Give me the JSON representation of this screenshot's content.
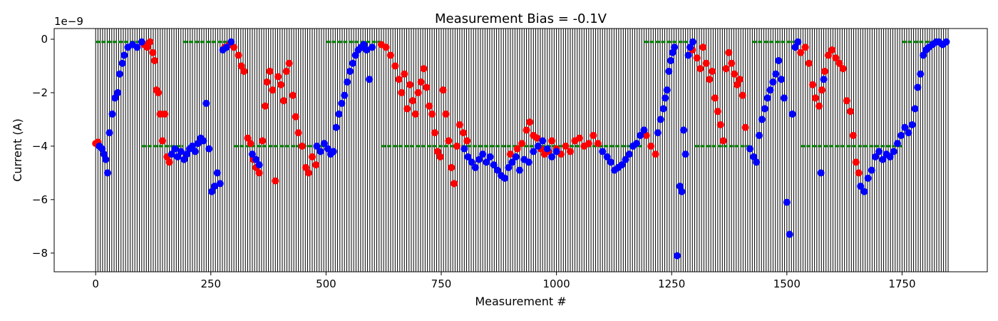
{
  "chart_data": {
    "type": "scatter",
    "title": "Measurement Bias = -0.1V",
    "xlabel": "Measurement #",
    "ylabel": "Current (A)",
    "y_offset_label": "1e−9",
    "xlim": [
      -90,
      1935
    ],
    "ylim": [
      -8.7,
      0.4
    ],
    "x_ticks": [
      0,
      250,
      500,
      750,
      1000,
      1250,
      1500,
      1750
    ],
    "x_tick_labels": [
      "0",
      "250",
      "500",
      "750",
      "1000",
      "1250",
      "1500",
      "1750"
    ],
    "y_ticks": [
      0,
      -2,
      -4,
      -6,
      -8
    ],
    "y_tick_labels": [
      "0",
      "−2",
      "−4",
      "−6",
      "−8"
    ],
    "grid": false,
    "vertical_lines": {
      "color": "#000000",
      "x_start": 0,
      "x_end": 1850,
      "spacing": 5
    },
    "colors": {
      "pulse": "#008000",
      "red": "#ff0000",
      "blue": "#0000ff"
    },
    "series": [
      {
        "color": "red",
        "points": [
          [
            0,
            -3.9
          ],
          [
            5,
            -3.85
          ],
          [
            105,
            -0.2
          ],
          [
            112,
            -0.3
          ],
          [
            118,
            -0.1
          ],
          [
            124,
            -0.5
          ],
          [
            128,
            -0.8
          ],
          [
            132,
            -1.9
          ],
          [
            136,
            -2.0
          ],
          [
            140,
            -2.8
          ],
          [
            145,
            -3.8
          ],
          [
            150,
            -2.8
          ],
          [
            155,
            -4.4
          ],
          [
            160,
            -4.6
          ],
          [
            280,
            -0.3
          ],
          [
            290,
            -0.2
          ],
          [
            300,
            -0.3
          ],
          [
            310,
            -0.6
          ],
          [
            316,
            -1.0
          ],
          [
            322,
            -1.2
          ],
          [
            330,
            -3.7
          ],
          [
            336,
            -3.9
          ],
          [
            342,
            -4.5
          ],
          [
            348,
            -4.8
          ],
          [
            355,
            -5.0
          ],
          [
            362,
            -3.8
          ],
          [
            368,
            -2.5
          ],
          [
            372,
            -1.6
          ],
          [
            378,
            -1.2
          ],
          [
            384,
            -1.9
          ],
          [
            390,
            -5.3
          ],
          [
            396,
            -1.4
          ],
          [
            402,
            -1.7
          ],
          [
            408,
            -2.3
          ],
          [
            414,
            -1.2
          ],
          [
            420,
            -0.9
          ],
          [
            428,
            -2.1
          ],
          [
            434,
            -2.9
          ],
          [
            440,
            -3.5
          ],
          [
            448,
            -4.0
          ],
          [
            456,
            -4.8
          ],
          [
            462,
            -5.0
          ],
          [
            470,
            -4.4
          ],
          [
            478,
            -4.7
          ],
          [
            620,
            -0.2
          ],
          [
            630,
            -0.3
          ],
          [
            640,
            -0.6
          ],
          [
            650,
            -1.0
          ],
          [
            658,
            -1.5
          ],
          [
            664,
            -2.0
          ],
          [
            670,
            -1.3
          ],
          [
            676,
            -2.6
          ],
          [
            682,
            -1.7
          ],
          [
            688,
            -2.3
          ],
          [
            694,
            -2.8
          ],
          [
            700,
            -2.0
          ],
          [
            706,
            -1.6
          ],
          [
            712,
            -1.1
          ],
          [
            718,
            -1.8
          ],
          [
            724,
            -2.5
          ],
          [
            730,
            -2.8
          ],
          [
            736,
            -3.5
          ],
          [
            742,
            -4.2
          ],
          [
            748,
            -4.4
          ],
          [
            754,
            -1.9
          ],
          [
            760,
            -2.8
          ],
          [
            766,
            -3.8
          ],
          [
            772,
            -4.8
          ],
          [
            778,
            -5.4
          ],
          [
            784,
            -4.0
          ],
          [
            790,
            -3.2
          ],
          [
            798,
            -3.5
          ],
          [
            806,
            -3.8
          ],
          [
            900,
            -4.3
          ],
          [
            915,
            -4.1
          ],
          [
            925,
            -3.9
          ],
          [
            935,
            -3.4
          ],
          [
            942,
            -3.1
          ],
          [
            950,
            -3.6
          ],
          [
            958,
            -3.7
          ],
          [
            966,
            -4.1
          ],
          [
            974,
            -4.3
          ],
          [
            982,
            -4.2
          ],
          [
            990,
            -3.8
          ],
          [
            1000,
            -4.1
          ],
          [
            1010,
            -4.3
          ],
          [
            1020,
            -4.0
          ],
          [
            1030,
            -4.2
          ],
          [
            1040,
            -3.8
          ],
          [
            1050,
            -3.7
          ],
          [
            1060,
            -4.0
          ],
          [
            1070,
            -3.9
          ],
          [
            1080,
            -3.6
          ],
          [
            1090,
            -3.9
          ],
          [
            1195,
            -3.6
          ],
          [
            1205,
            -4.0
          ],
          [
            1215,
            -4.3
          ],
          [
            1295,
            -0.4
          ],
          [
            1305,
            -0.7
          ],
          [
            1312,
            -1.1
          ],
          [
            1318,
            -0.3
          ],
          [
            1325,
            -0.9
          ],
          [
            1332,
            -1.5
          ],
          [
            1338,
            -1.2
          ],
          [
            1344,
            -2.2
          ],
          [
            1350,
            -2.7
          ],
          [
            1356,
            -3.2
          ],
          [
            1362,
            -3.8
          ],
          [
            1368,
            -1.1
          ],
          [
            1374,
            -0.5
          ],
          [
            1380,
            -0.9
          ],
          [
            1386,
            -1.3
          ],
          [
            1392,
            -1.7
          ],
          [
            1398,
            -1.5
          ],
          [
            1404,
            -2.1
          ],
          [
            1410,
            -3.3
          ],
          [
            1530,
            -0.5
          ],
          [
            1540,
            -0.3
          ],
          [
            1548,
            -0.9
          ],
          [
            1556,
            -1.7
          ],
          [
            1562,
            -2.2
          ],
          [
            1570,
            -2.5
          ],
          [
            1576,
            -1.9
          ],
          [
            1582,
            -1.2
          ],
          [
            1590,
            -0.6
          ],
          [
            1598,
            -0.4
          ],
          [
            1606,
            -0.7
          ],
          [
            1614,
            -0.9
          ],
          [
            1622,
            -1.1
          ],
          [
            1630,
            -2.3
          ],
          [
            1638,
            -2.7
          ],
          [
            1644,
            -3.6
          ],
          [
            1650,
            -4.6
          ],
          [
            1656,
            -5.0
          ]
        ]
      },
      {
        "color": "blue",
        "points": [
          [
            8,
            -4.0
          ],
          [
            14,
            -4.1
          ],
          [
            18,
            -4.3
          ],
          [
            22,
            -4.5
          ],
          [
            26,
            -5.0
          ],
          [
            30,
            -3.5
          ],
          [
            36,
            -2.8
          ],
          [
            42,
            -2.2
          ],
          [
            48,
            -2.0
          ],
          [
            52,
            -1.3
          ],
          [
            58,
            -0.9
          ],
          [
            62,
            -0.6
          ],
          [
            70,
            -0.3
          ],
          [
            80,
            -0.2
          ],
          [
            90,
            -0.3
          ],
          [
            100,
            -0.1
          ],
          [
            165,
            -4.3
          ],
          [
            172,
            -4.1
          ],
          [
            178,
            -4.4
          ],
          [
            185,
            -4.2
          ],
          [
            192,
            -4.5
          ],
          [
            198,
            -4.3
          ],
          [
            204,
            -4.1
          ],
          [
            210,
            -4.0
          ],
          [
            216,
            -4.2
          ],
          [
            222,
            -3.9
          ],
          [
            228,
            -3.7
          ],
          [
            234,
            -3.8
          ],
          [
            240,
            -2.4
          ],
          [
            246,
            -4.1
          ],
          [
            252,
            -5.7
          ],
          [
            258,
            -5.5
          ],
          [
            264,
            -5.0
          ],
          [
            270,
            -5.4
          ],
          [
            276,
            -0.4
          ],
          [
            284,
            -0.3
          ],
          [
            294,
            -0.1
          ],
          [
            340,
            -4.3
          ],
          [
            348,
            -4.5
          ],
          [
            355,
            -4.7
          ],
          [
            480,
            -4.0
          ],
          [
            488,
            -4.2
          ],
          [
            496,
            -3.9
          ],
          [
            504,
            -4.1
          ],
          [
            510,
            -4.3
          ],
          [
            516,
            -4.2
          ],
          [
            522,
            -3.3
          ],
          [
            528,
            -2.8
          ],
          [
            534,
            -2.4
          ],
          [
            540,
            -2.1
          ],
          [
            546,
            -1.6
          ],
          [
            552,
            -1.2
          ],
          [
            558,
            -0.9
          ],
          [
            564,
            -0.6
          ],
          [
            570,
            -0.4
          ],
          [
            576,
            -0.3
          ],
          [
            582,
            -0.2
          ],
          [
            588,
            -0.4
          ],
          [
            594,
            -1.5
          ],
          [
            600,
            -0.3
          ],
          [
            800,
            -4.1
          ],
          [
            808,
            -4.4
          ],
          [
            816,
            -4.6
          ],
          [
            824,
            -4.8
          ],
          [
            832,
            -4.5
          ],
          [
            840,
            -4.3
          ],
          [
            848,
            -4.6
          ],
          [
            856,
            -4.4
          ],
          [
            864,
            -4.7
          ],
          [
            872,
            -4.9
          ],
          [
            880,
            -5.1
          ],
          [
            888,
            -5.2
          ],
          [
            896,
            -4.8
          ],
          [
            904,
            -4.6
          ],
          [
            912,
            -4.4
          ],
          [
            920,
            -4.9
          ],
          [
            930,
            -4.5
          ],
          [
            940,
            -4.6
          ],
          [
            950,
            -4.2
          ],
          [
            960,
            -4.0
          ],
          [
            970,
            -3.8
          ],
          [
            980,
            -4.1
          ],
          [
            990,
            -4.4
          ],
          [
            1000,
            -4.2
          ],
          [
            1100,
            -4.2
          ],
          [
            1110,
            -4.4
          ],
          [
            1118,
            -4.6
          ],
          [
            1126,
            -4.9
          ],
          [
            1134,
            -4.8
          ],
          [
            1142,
            -4.7
          ],
          [
            1150,
            -4.5
          ],
          [
            1158,
            -4.3
          ],
          [
            1166,
            -4.0
          ],
          [
            1174,
            -3.9
          ],
          [
            1182,
            -3.6
          ],
          [
            1190,
            -3.4
          ],
          [
            1220,
            -3.5
          ],
          [
            1226,
            -3.0
          ],
          [
            1232,
            -2.6
          ],
          [
            1236,
            -2.2
          ],
          [
            1240,
            -1.9
          ],
          [
            1244,
            -1.2
          ],
          [
            1248,
            -0.8
          ],
          [
            1252,
            -0.5
          ],
          [
            1256,
            -0.3
          ],
          [
            1262,
            -8.1
          ],
          [
            1268,
            -5.5
          ],
          [
            1272,
            -5.7
          ],
          [
            1276,
            -3.4
          ],
          [
            1280,
            -4.3
          ],
          [
            1286,
            -0.6
          ],
          [
            1290,
            -0.3
          ],
          [
            1296,
            -0.1
          ],
          [
            1420,
            -4.1
          ],
          [
            1428,
            -4.4
          ],
          [
            1434,
            -4.6
          ],
          [
            1440,
            -3.6
          ],
          [
            1446,
            -3.0
          ],
          [
            1452,
            -2.6
          ],
          [
            1458,
            -2.2
          ],
          [
            1464,
            -1.9
          ],
          [
            1470,
            -1.6
          ],
          [
            1476,
            -1.3
          ],
          [
            1482,
            -0.8
          ],
          [
            1488,
            -1.5
          ],
          [
            1494,
            -2.2
          ],
          [
            1500,
            -6.1
          ],
          [
            1506,
            -7.3
          ],
          [
            1512,
            -2.8
          ],
          [
            1518,
            -0.3
          ],
          [
            1524,
            -0.1
          ],
          [
            1574,
            -5.0
          ],
          [
            1580,
            -1.5
          ],
          [
            1660,
            -5.5
          ],
          [
            1668,
            -5.7
          ],
          [
            1676,
            -5.2
          ],
          [
            1684,
            -4.9
          ],
          [
            1692,
            -4.4
          ],
          [
            1700,
            -4.2
          ],
          [
            1708,
            -4.5
          ],
          [
            1716,
            -4.3
          ],
          [
            1724,
            -4.4
          ],
          [
            1732,
            -4.2
          ],
          [
            1740,
            -3.9
          ],
          [
            1748,
            -3.6
          ],
          [
            1756,
            -3.3
          ],
          [
            1764,
            -3.5
          ],
          [
            1772,
            -3.2
          ],
          [
            1778,
            -2.6
          ],
          [
            1784,
            -1.8
          ],
          [
            1790,
            -1.3
          ],
          [
            1796,
            -0.6
          ],
          [
            1802,
            -0.4
          ],
          [
            1808,
            -0.3
          ],
          [
            1816,
            -0.2
          ],
          [
            1824,
            -0.1
          ],
          [
            1830,
            -0.1
          ],
          [
            1838,
            -0.2
          ],
          [
            1846,
            -0.1
          ]
        ]
      }
    ],
    "pulse_segments": [
      {
        "x0": 0,
        "x1": 100,
        "y": -0.1
      },
      {
        "x0": 100,
        "x1": 190,
        "y": -4.0
      },
      {
        "x0": 190,
        "x1": 300,
        "y": -0.1
      },
      {
        "x0": 300,
        "x1": 500,
        "y": -4.0
      },
      {
        "x0": 500,
        "x1": 620,
        "y": -0.1
      },
      {
        "x0": 620,
        "x1": 1190,
        "y": -4.0
      },
      {
        "x0": 1190,
        "x1": 1300,
        "y": -0.1
      },
      {
        "x0": 1300,
        "x1": 1425,
        "y": -4.0
      },
      {
        "x0": 1425,
        "x1": 1530,
        "y": -0.1
      },
      {
        "x0": 1530,
        "x1": 1750,
        "y": -4.0
      },
      {
        "x0": 1750,
        "x1": 1850,
        "y": -0.1
      }
    ]
  }
}
